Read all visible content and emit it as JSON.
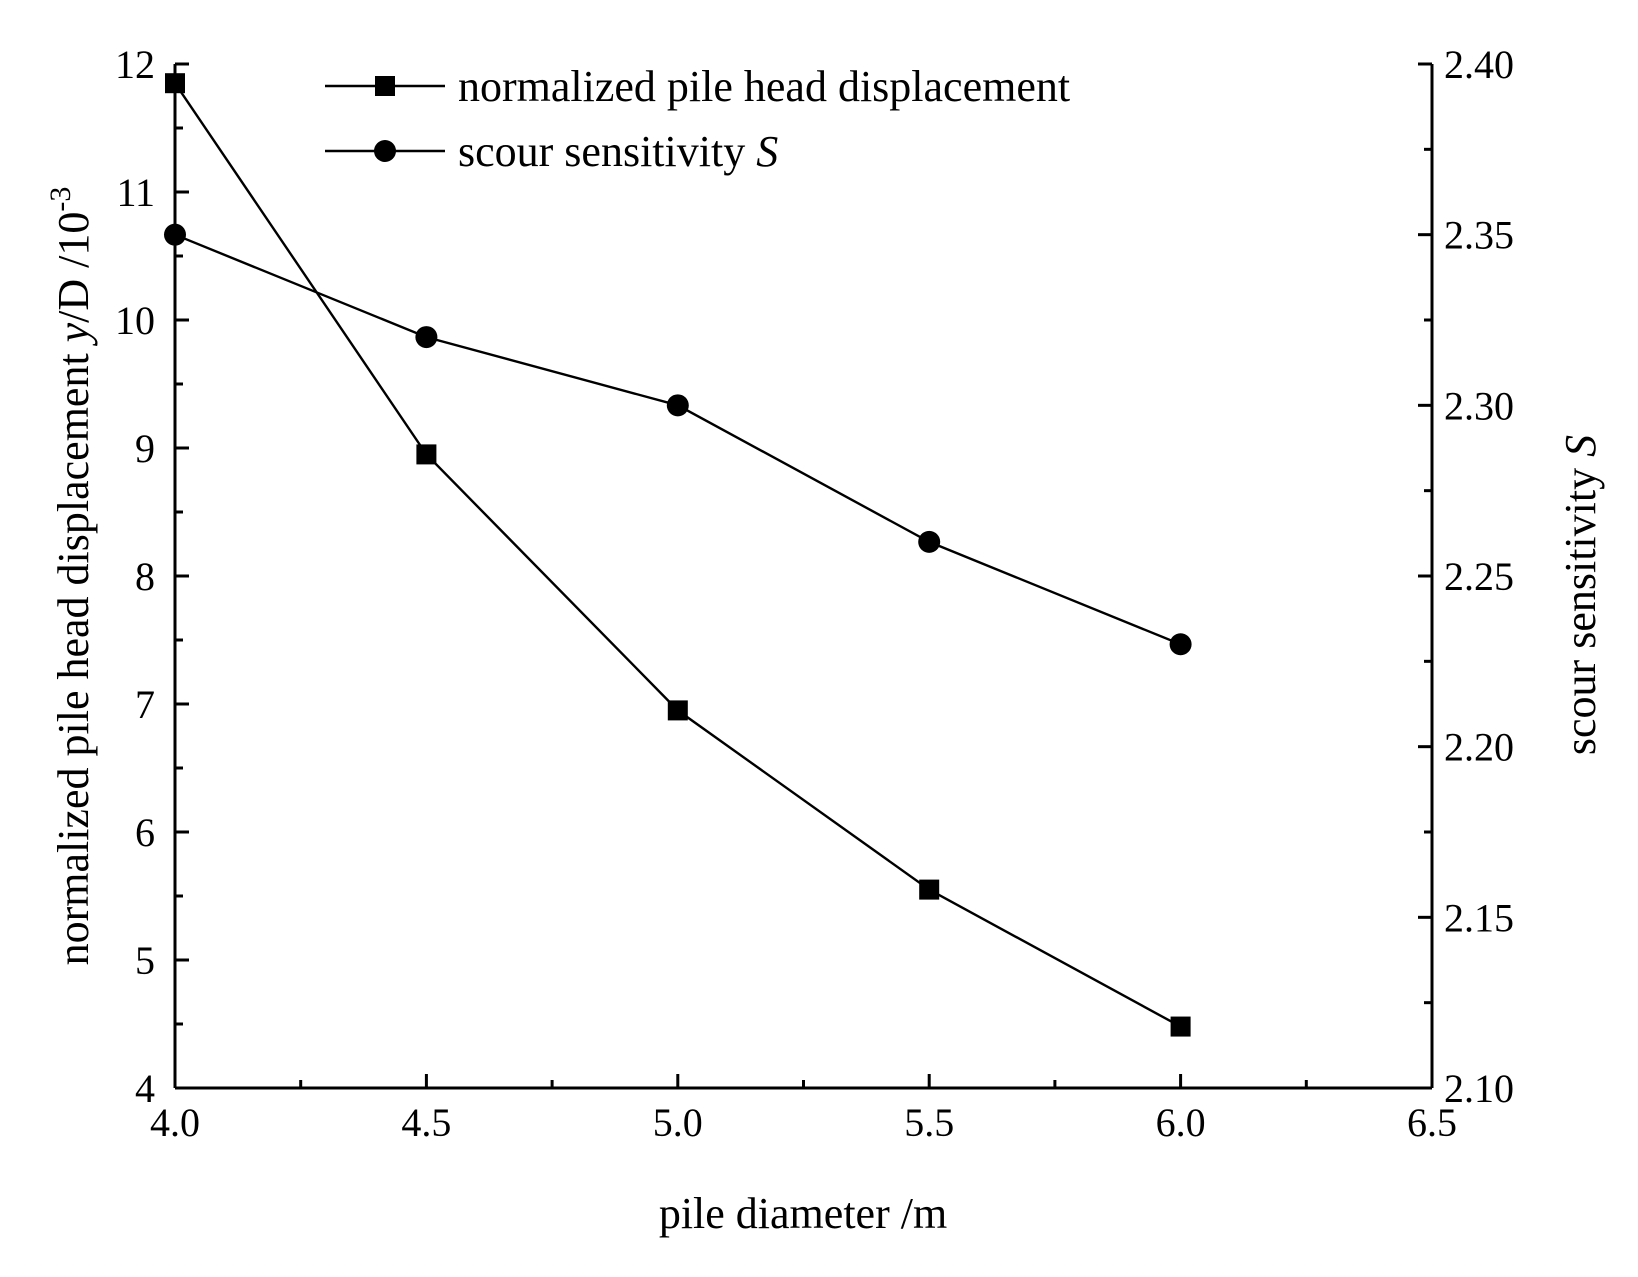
{
  "chart_data": {
    "type": "line",
    "x": [
      4.0,
      4.5,
      5.0,
      5.5,
      6.0
    ],
    "xlabel": "pile diameter /m",
    "xlim": [
      4.0,
      6.5
    ],
    "xticks": [
      "4.0",
      "4.5",
      "5.0",
      "5.5",
      "6.0",
      "6.5"
    ],
    "y_left": {
      "label_parts": [
        "normalized pile head displacement ",
        "y",
        "/D  /10",
        "-3"
      ],
      "lim": [
        4,
        12
      ],
      "ticks": [
        "4",
        "5",
        "6",
        "7",
        "8",
        "9",
        "10",
        "11",
        "12"
      ]
    },
    "y_right": {
      "label_parts": [
        "scour sensitivity ",
        "S"
      ],
      "lim": [
        2.1,
        2.4
      ],
      "ticks": [
        "2.10",
        "2.15",
        "2.20",
        "2.25",
        "2.30",
        "2.35",
        "2.40"
      ]
    },
    "series": [
      {
        "name": "normalized pile head displacement",
        "axis": "left",
        "marker": "square",
        "values": [
          11.85,
          8.95,
          6.95,
          5.55,
          4.48
        ]
      },
      {
        "name": "scour sensitivity ",
        "name_italic": "S",
        "axis": "right",
        "marker": "circle",
        "values": [
          2.35,
          2.32,
          2.3,
          2.26,
          2.23
        ]
      }
    ],
    "legend": "top-center",
    "grid": false
  }
}
